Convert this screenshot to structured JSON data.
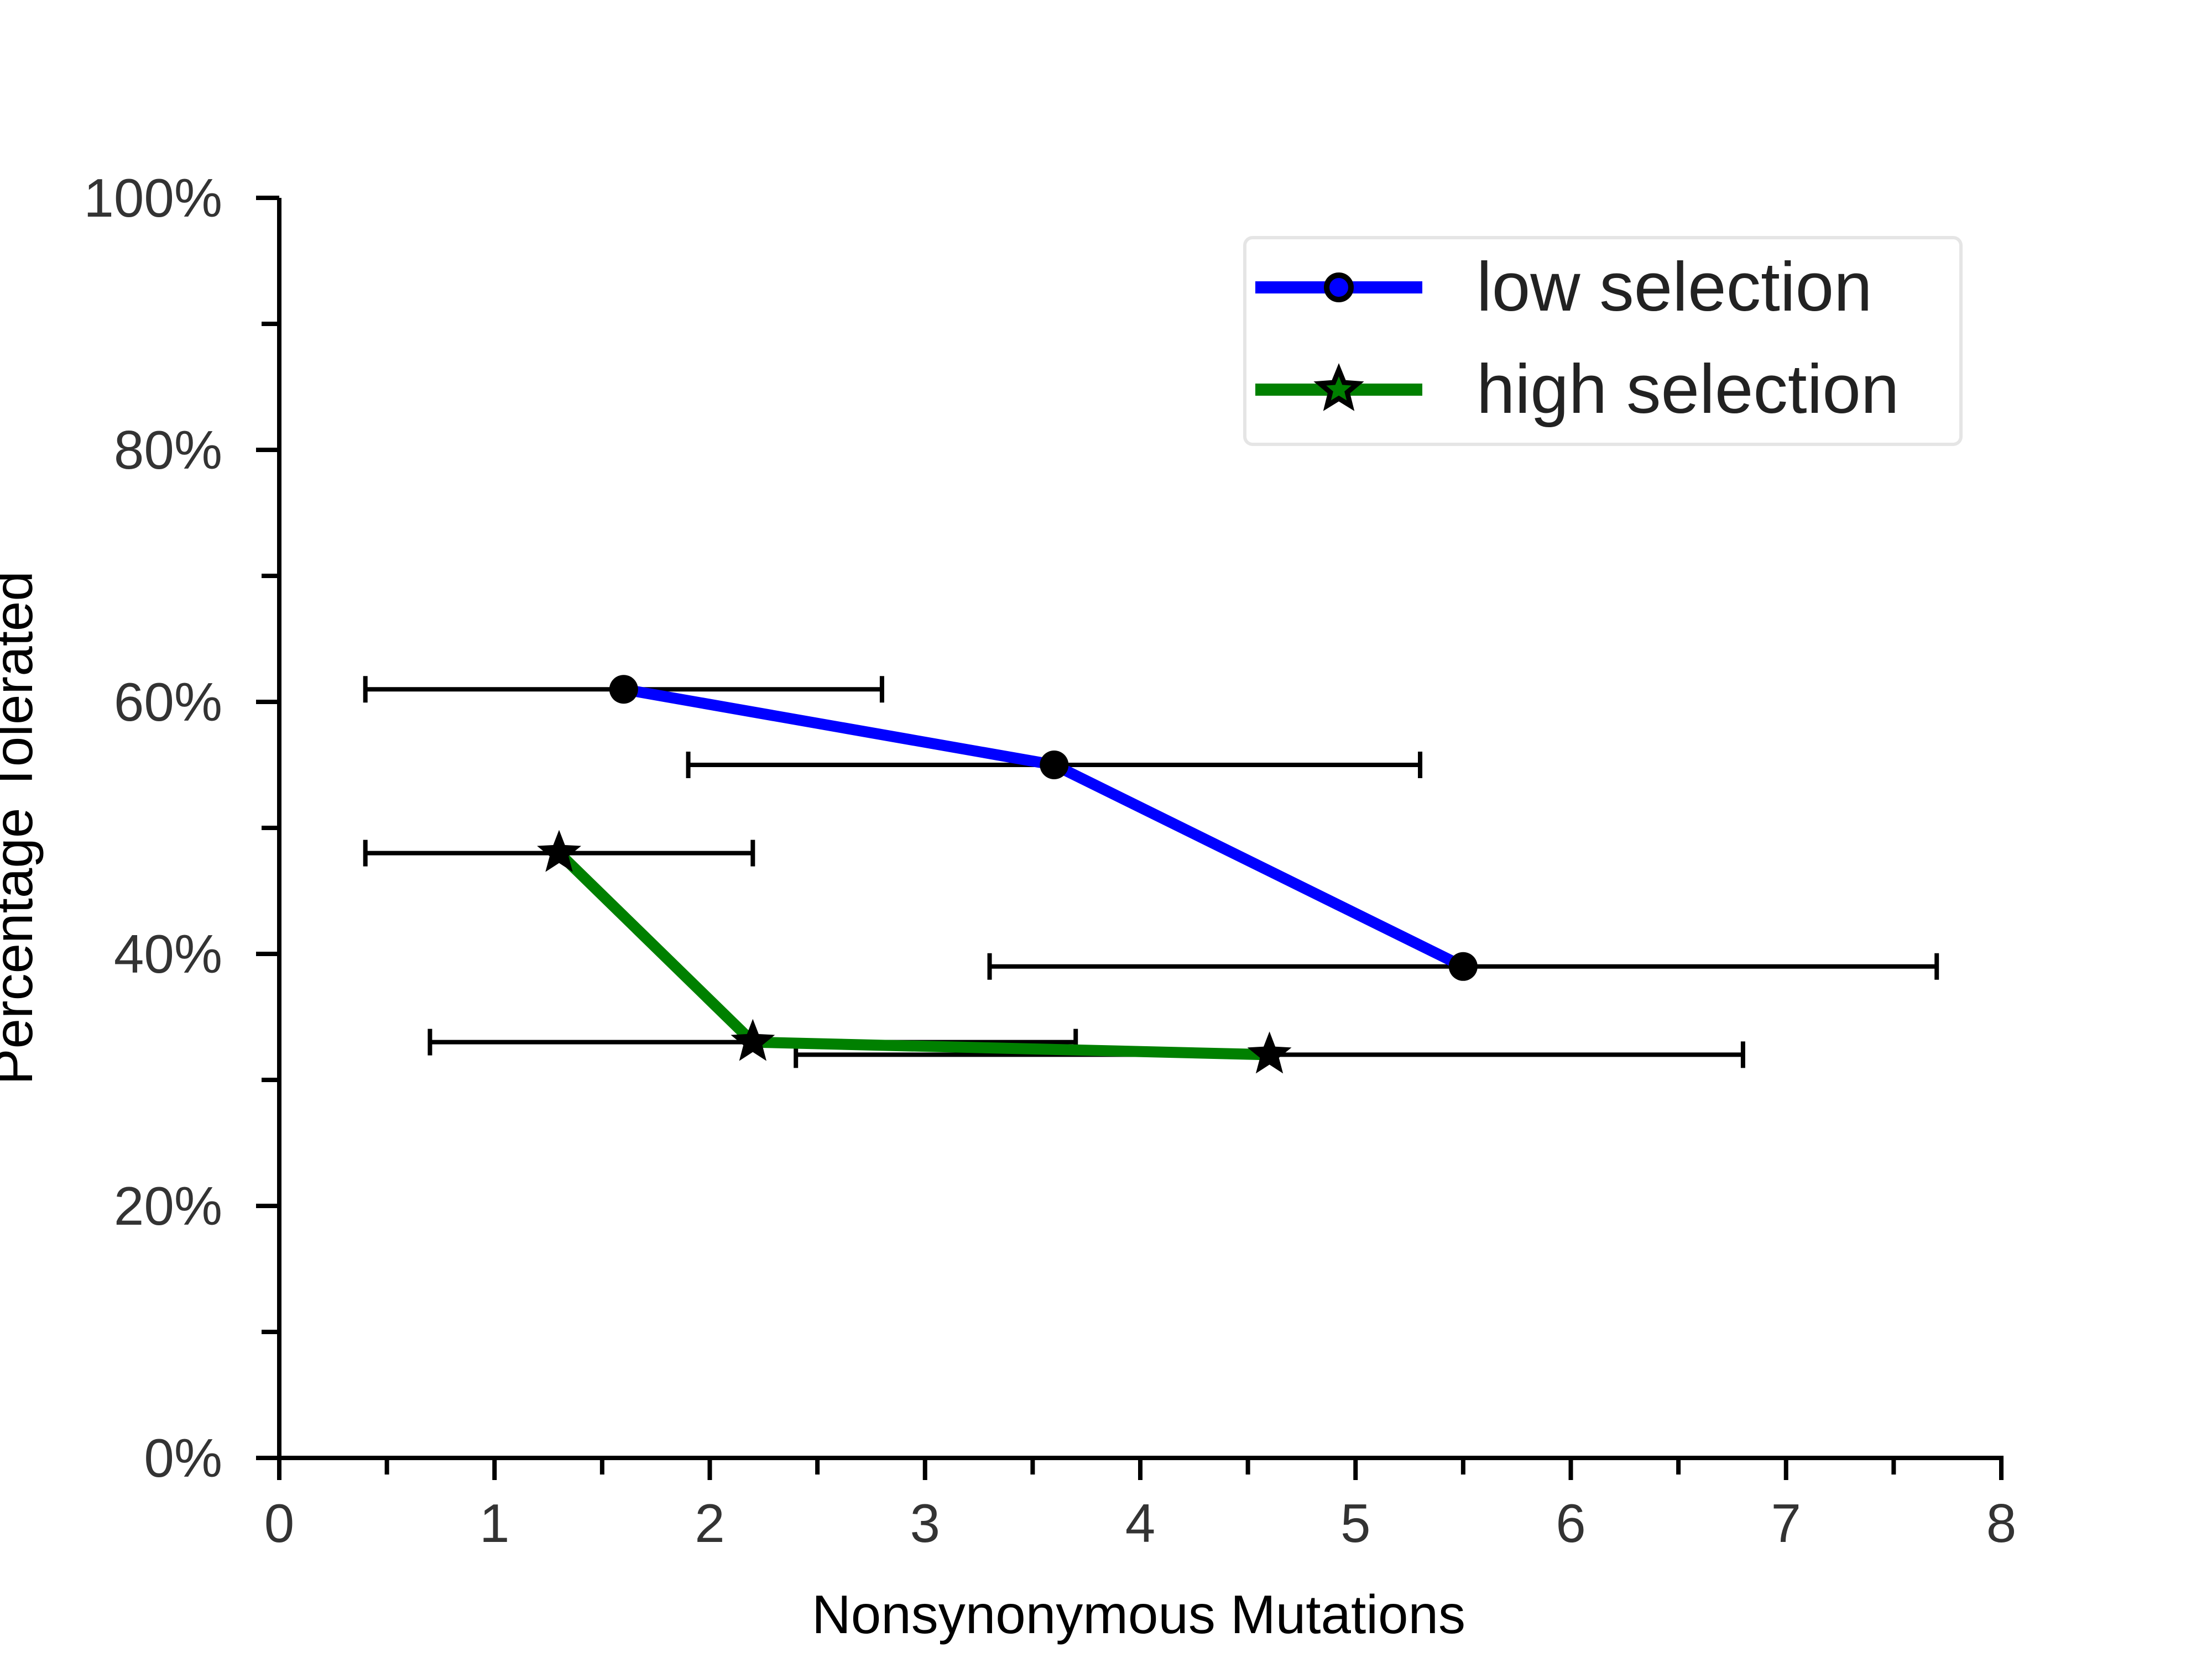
{
  "chart_data": {
    "type": "line",
    "xlabel": "Nonsynonymous Mutations",
    "ylabel": "Percentage Tolerated",
    "xlim": [
      0,
      8
    ],
    "ylim": [
      0,
      100
    ],
    "x_ticks": [
      0,
      1,
      2,
      3,
      4,
      5,
      6,
      7,
      8
    ],
    "x_tick_labels": [
      "0",
      "1",
      "2",
      "3",
      "4",
      "5",
      "6",
      "7",
      "8"
    ],
    "x_minor_ticks": [
      0.5,
      1.5,
      2.5,
      3.5,
      4.5,
      5.5,
      6.5,
      7.5
    ],
    "y_ticks": [
      0,
      20,
      40,
      60,
      80,
      100
    ],
    "y_tick_labels": [
      "0%",
      "20%",
      "40%",
      "60%",
      "80%",
      "100%"
    ],
    "y_minor_ticks": [
      10,
      30,
      50,
      70,
      90
    ],
    "grid": false,
    "legend_position": "top-right",
    "series": [
      {
        "name": "low selection",
        "color": "#0000ff",
        "marker": "circle",
        "x": [
          1.6,
          3.6,
          5.5
        ],
        "y": [
          61,
          55,
          39
        ],
        "xerr_low": [
          0.4,
          1.9,
          3.3
        ],
        "xerr_high": [
          2.8,
          5.3,
          7.7
        ]
      },
      {
        "name": "high selection",
        "color": "#008000",
        "marker": "star",
        "x": [
          1.3,
          2.2,
          4.6
        ],
        "y": [
          48,
          33,
          32
        ],
        "xerr_low": [
          0.4,
          0.7,
          2.4
        ],
        "xerr_high": [
          2.2,
          3.7,
          6.8
        ]
      }
    ]
  }
}
